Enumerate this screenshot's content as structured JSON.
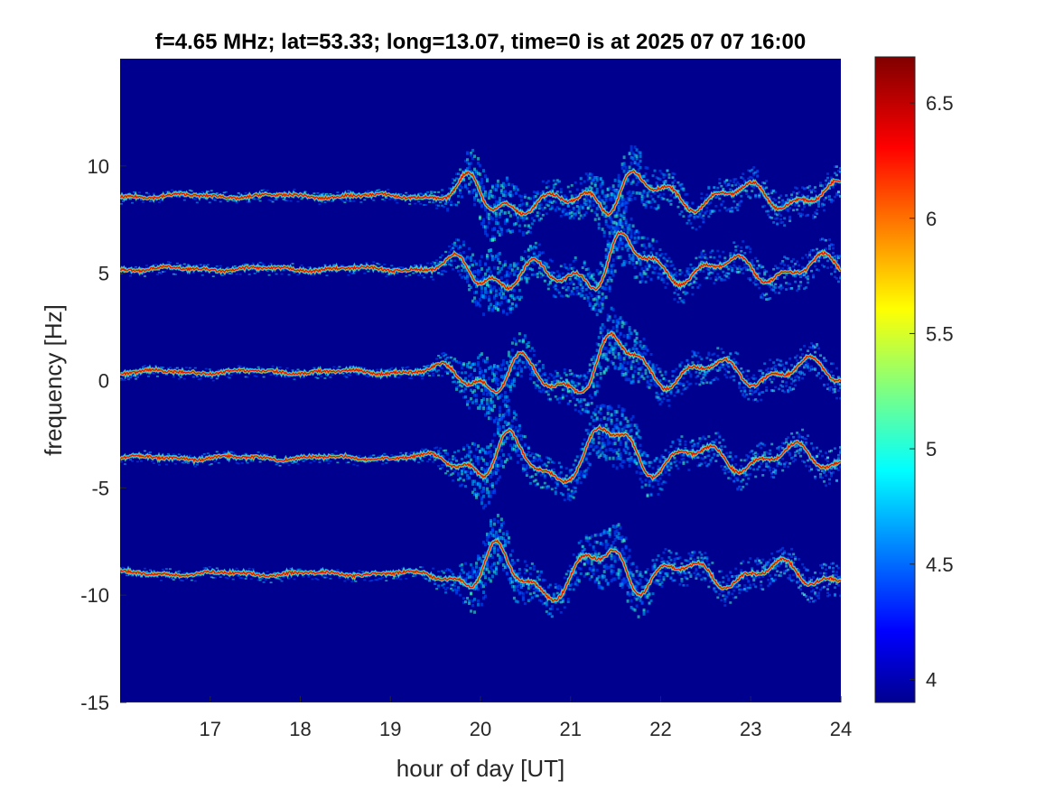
{
  "chart_data": {
    "type": "heatmap",
    "title": "f=4.65 MHz;  lat=53.33; long=13.07, time=0 is at 2025 07 07 16:00",
    "xlabel": "hour of day [UT]",
    "ylabel": "frequency [Hz]",
    "xlim": [
      16,
      24
    ],
    "ylim": [
      -15,
      15
    ],
    "x_ticks": [
      17,
      18,
      19,
      20,
      21,
      22,
      23,
      24
    ],
    "x_tick_labels": [
      "17",
      "18",
      "19",
      "20",
      "21",
      "22",
      "23",
      "24"
    ],
    "y_ticks": [
      10,
      5,
      0,
      -5,
      -10,
      -15
    ],
    "y_tick_labels": [
      "10",
      "5",
      "0",
      "-5",
      "-10",
      "-15"
    ],
    "colorbar": {
      "range": [
        3.9,
        6.7
      ],
      "ticks": [
        6.5,
        6,
        5.5,
        5,
        4.5,
        4
      ],
      "tick_labels": [
        "6.5",
        "6",
        "5.5",
        "5",
        "4.5",
        "4"
      ],
      "colormap": "jet"
    },
    "background_color": "#00008f",
    "series": [
      {
        "baseline_hz": 8.6
      },
      {
        "baseline_hz": 5.2
      },
      {
        "baseline_hz": 0.4
      },
      {
        "baseline_hz": -3.6
      },
      {
        "baseline_hz": -9.0
      }
    ],
    "disturbance_window_hours": [
      19.3,
      24
    ],
    "peak_disturbance_hours": [
      20.1,
      21.5
    ]
  }
}
